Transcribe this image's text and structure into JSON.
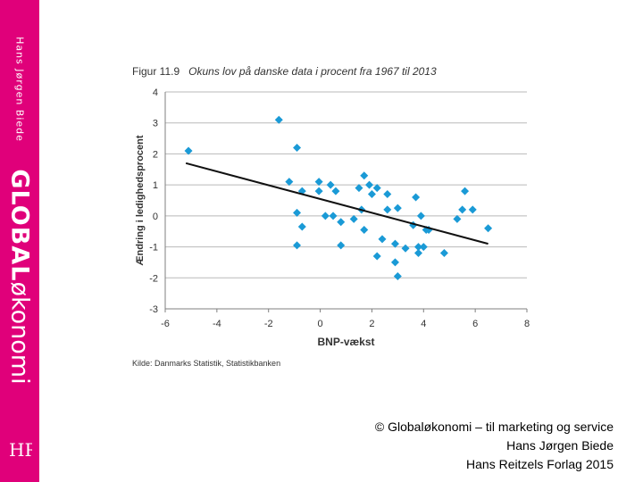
{
  "sidebar": {
    "author": "Hans Jørgen Biede",
    "brand_bold": "GLOBAL",
    "brand_light": "økonomi",
    "logo_label": "HR"
  },
  "figure": {
    "number": "Figur 11.9",
    "caption": "Okuns lov på danske data i procent fra 1967 til 2013",
    "source": "Kilde: Danmarks Statistik, Statistikbanken"
  },
  "credits": {
    "line1": "© Globaløkonomi – til marketing og service",
    "line2": "Hans Jørgen Biede",
    "line3": "Hans Reitzels Forlag 2015"
  },
  "colors": {
    "sidebar": "#e0007a",
    "points": "#1a9ad6",
    "trend": "#111111"
  },
  "chart_data": {
    "type": "scatter",
    "title": "Okuns lov på danske data i procent fra 1967 til 2013",
    "xlabel": "BNP-vækst",
    "ylabel": "Ændring i ledighedsprocent",
    "xlim": [
      -6,
      8
    ],
    "ylim": [
      -3,
      4
    ],
    "xticks": [
      -6,
      -4,
      -2,
      0,
      2,
      4,
      6,
      8
    ],
    "yticks": [
      -3,
      -2,
      -1,
      0,
      1,
      2,
      3,
      4
    ],
    "grid": "horizontal",
    "points": [
      {
        "x": -5.1,
        "y": 2.1
      },
      {
        "x": -1.6,
        "y": 3.1
      },
      {
        "x": -0.9,
        "y": 2.2
      },
      {
        "x": -1.2,
        "y": 1.1
      },
      {
        "x": -0.7,
        "y": 0.8
      },
      {
        "x": -0.9,
        "y": 0.1
      },
      {
        "x": -0.7,
        "y": -0.35
      },
      {
        "x": -0.9,
        "y": -0.95
      },
      {
        "x": -0.05,
        "y": 1.1
      },
      {
        "x": -0.05,
        "y": 0.8
      },
      {
        "x": 0.4,
        "y": 1.0
      },
      {
        "x": 0.6,
        "y": 0.8
      },
      {
        "x": 0.2,
        "y": 0.0
      },
      {
        "x": 0.5,
        "y": 0.0
      },
      {
        "x": 0.8,
        "y": -0.2
      },
      {
        "x": 0.8,
        "y": -0.95
      },
      {
        "x": 1.3,
        "y": -0.1
      },
      {
        "x": 1.5,
        "y": 0.9
      },
      {
        "x": 1.6,
        "y": 0.2
      },
      {
        "x": 1.7,
        "y": 1.3
      },
      {
        "x": 1.7,
        "y": -0.45
      },
      {
        "x": 1.9,
        "y": 1.0
      },
      {
        "x": 2.0,
        "y": 0.7
      },
      {
        "x": 2.2,
        "y": 0.9
      },
      {
        "x": 2.2,
        "y": -1.3
      },
      {
        "x": 2.4,
        "y": -0.75
      },
      {
        "x": 2.6,
        "y": 0.7
      },
      {
        "x": 2.6,
        "y": 0.2
      },
      {
        "x": 2.9,
        "y": -0.9
      },
      {
        "x": 3.0,
        "y": 0.25
      },
      {
        "x": 2.9,
        "y": -1.5
      },
      {
        "x": 3.0,
        "y": -1.95
      },
      {
        "x": 3.3,
        "y": -1.05
      },
      {
        "x": 3.6,
        "y": -0.3
      },
      {
        "x": 3.7,
        "y": 0.6
      },
      {
        "x": 3.9,
        "y": 0.0
      },
      {
        "x": 3.8,
        "y": -1.0
      },
      {
        "x": 3.8,
        "y": -1.2
      },
      {
        "x": 4.0,
        "y": -1.0
      },
      {
        "x": 4.1,
        "y": -0.45
      },
      {
        "x": 4.2,
        "y": -0.45
      },
      {
        "x": 4.8,
        "y": -1.2
      },
      {
        "x": 5.3,
        "y": -0.1
      },
      {
        "x": 5.5,
        "y": 0.2
      },
      {
        "x": 5.6,
        "y": 0.8
      },
      {
        "x": 5.9,
        "y": 0.2
      },
      {
        "x": 6.5,
        "y": -0.4
      }
    ],
    "trendline": {
      "x": [
        -5.2,
        6.5
      ],
      "y": [
        1.7,
        -0.9
      ]
    }
  }
}
